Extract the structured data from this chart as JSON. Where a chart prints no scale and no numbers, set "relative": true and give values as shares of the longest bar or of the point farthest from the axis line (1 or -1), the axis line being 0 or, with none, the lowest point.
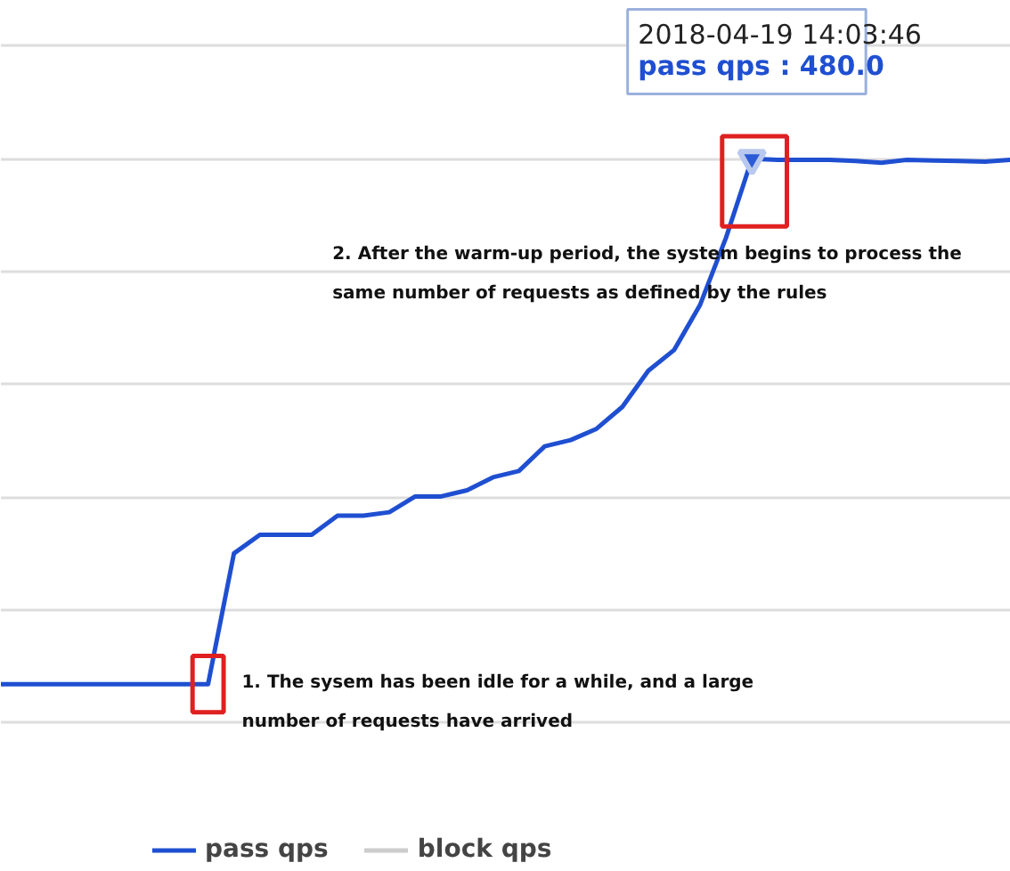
{
  "chart_data": {
    "type": "line",
    "relative": true,
    "grid": "y",
    "legend": "bottom",
    "marker": "none",
    "line_style": "solid",
    "categories": [
      null,
      null,
      null,
      null,
      null,
      null,
      null,
      null,
      null,
      null,
      null,
      null,
      null,
      null,
      null,
      null,
      null,
      null,
      null,
      null,
      null,
      null,
      null,
      null,
      null,
      null,
      null,
      null,
      null,
      null,
      null,
      null,
      null,
      null,
      null,
      null,
      null,
      null,
      null,
      null
    ],
    "series": [
      {
        "name": "pass qps",
        "color": "#1f4fd1",
        "values": [
          0.068,
          0.068,
          0.068,
          0.068,
          0.068,
          0.068,
          0.068,
          0.068,
          0.068,
          0.3,
          0.333,
          0.333,
          0.333,
          0.367,
          0.367,
          0.373,
          0.401,
          0.401,
          0.412,
          0.435,
          0.446,
          0.49,
          0.501,
          0.521,
          0.56,
          0.624,
          0.661,
          0.741,
          0.86,
          1.0,
          0.998,
          0.998,
          0.998,
          0.996,
          0.993,
          0.998,
          0.997,
          0.996,
          0.995,
          0.998
        ]
      },
      {
        "name": "block qps",
        "color": "#cccccc",
        "values": [
          null,
          null,
          null,
          null,
          null,
          null,
          null,
          null,
          null,
          null,
          null,
          null,
          null,
          null,
          null,
          null,
          null,
          null,
          null,
          null,
          null,
          null,
          null,
          null,
          null,
          null,
          null,
          null,
          null,
          null,
          null,
          null,
          null,
          null,
          null,
          null,
          null,
          null,
          null,
          null
        ]
      }
    ],
    "annotations": [
      "2018-04-19 14:03:46\npass qps : 480.0",
      "1. The sysem has been idle for a while, and a large number of requests have arrived",
      "2. After the warm-up period, the system begins to process the same number of requests as defined by the rules"
    ]
  }
}
